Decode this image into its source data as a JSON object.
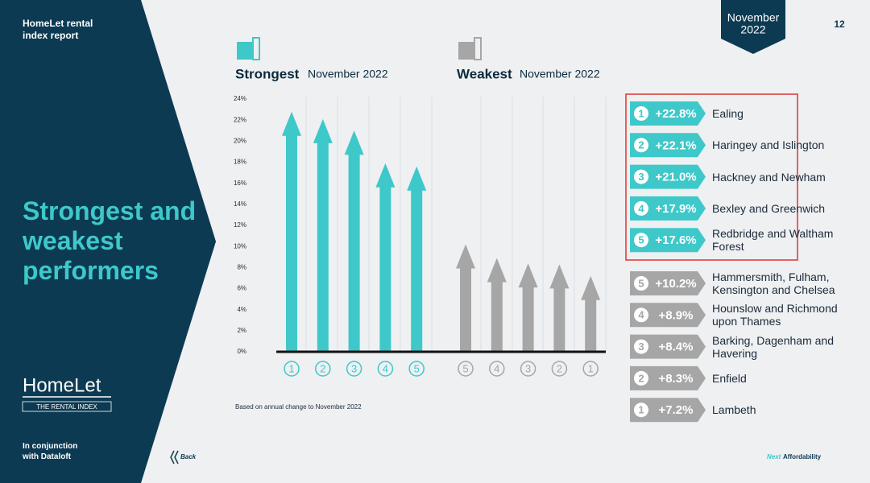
{
  "header": {
    "report": "HomeLet rental index report",
    "badge_lines": [
      "November",
      "2022"
    ],
    "page": "12"
  },
  "sidebar": {
    "title": "Strongest and weakest performers",
    "logo": "HomeLet",
    "logo_sub": "THE RENTAL INDEX",
    "partner": "In conjunction with Dataloft"
  },
  "nav": {
    "back": "Back",
    "next": "Next",
    "next_topic": "Affordability"
  },
  "chart_data": {
    "type": "bar",
    "note": "Based on annual change to November 2022",
    "ylim": [
      0,
      24
    ],
    "yticks": [
      {
        "value": 0,
        "label": "0%"
      },
      {
        "value": 2,
        "label": "2%"
      },
      {
        "value": 4,
        "label": "4%"
      },
      {
        "value": 6,
        "label": "6%"
      },
      {
        "value": 8,
        "label": "8%"
      },
      {
        "value": 10,
        "label": "10%"
      },
      {
        "value": 12,
        "label": "12%"
      },
      {
        "value": 14,
        "label": "14%"
      },
      {
        "value": 16,
        "label": "16%"
      },
      {
        "value": 18,
        "label": "18%"
      },
      {
        "value": 20,
        "label": "20%"
      },
      {
        "value": 22,
        "label": "22%"
      },
      {
        "value": 24,
        "label": "24%"
      }
    ],
    "series": [
      {
        "name": "Strongest",
        "period": "November 2022",
        "color": "#3ec8c9",
        "ranks": [
          "1",
          "2",
          "3",
          "4",
          "5"
        ],
        "values": [
          22.8,
          22.1,
          21.0,
          17.9,
          17.6
        ],
        "value_labels": [
          "+22.8%",
          "+22.1%",
          "+21.0%",
          "+17.9%",
          "+17.6%"
        ],
        "areas": [
          "Ealing",
          "Haringey and Islington",
          "Hackney and Newham",
          "Bexley and Greenwich",
          "Redbridge and Waltham Forest"
        ]
      },
      {
        "name": "Weakest",
        "period": "November 2022",
        "color": "#a6a6a6",
        "ranks": [
          "5",
          "4",
          "3",
          "2",
          "1"
        ],
        "values": [
          10.2,
          8.9,
          8.4,
          8.3,
          7.2
        ],
        "value_labels": [
          "+10.2%",
          "+8.9%",
          "+8.4%",
          "+8.3%",
          "+7.2%"
        ],
        "areas": [
          "Hammersmith, Fulham, Kensington and Chelsea",
          "Hounslow and Richmond upon Thames",
          "Barking, Dagenham and Havering",
          "Enfield",
          "Lambeth"
        ]
      }
    ]
  }
}
